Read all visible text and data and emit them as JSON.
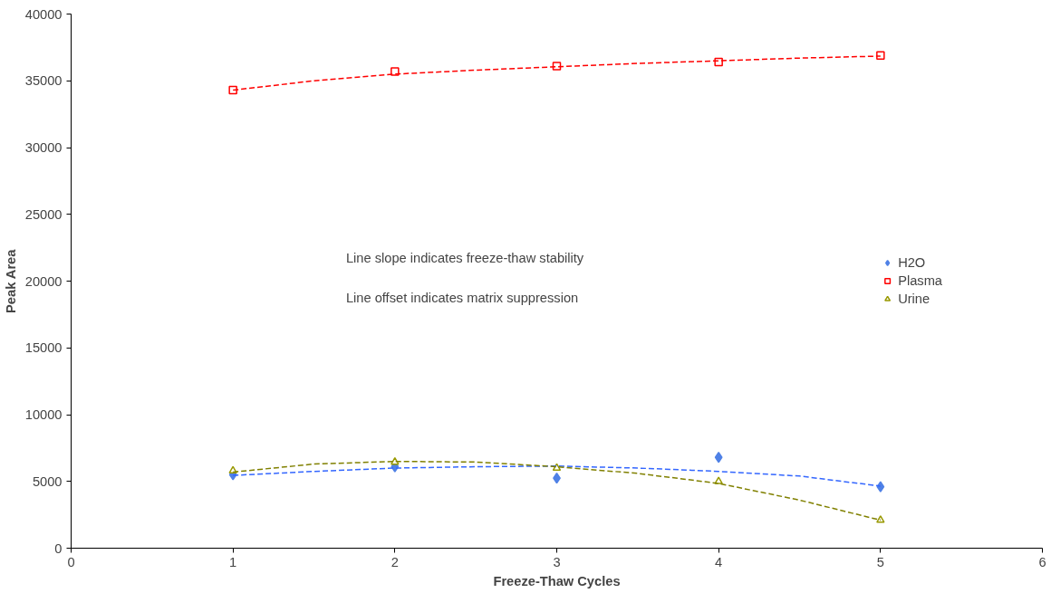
{
  "chart_data": {
    "type": "scatter",
    "xlabel": "Freeze-Thaw Cycles",
    "ylabel": "Peak Area",
    "annotations": [
      "Line slope indicates freeze-thaw stability",
      "Line offset indicates matrix suppression"
    ],
    "xlim": [
      0,
      6
    ],
    "xticks": [
      0,
      1,
      2,
      3,
      4,
      5,
      6
    ],
    "ylim": [
      0,
      40000
    ],
    "yticks": [
      0,
      5000,
      10000,
      15000,
      20000,
      25000,
      30000,
      35000,
      40000
    ],
    "grid": false,
    "legend": "right",
    "series": [
      {
        "name": "H2O",
        "color": "#4f81e6",
        "marker": "diamond",
        "x": [
          1,
          2,
          3,
          4,
          5
        ],
        "values": [
          5500,
          6100,
          5250,
          6800,
          4600
        ]
      },
      {
        "name": "Plasma",
        "color": "#ff0000",
        "marker": "square",
        "x": [
          1,
          2,
          3,
          4,
          5
        ],
        "values": [
          34300,
          35700,
          36100,
          36400,
          36900
        ]
      },
      {
        "name": "Urine",
        "color": "#999900",
        "marker": "triangle",
        "x": [
          1,
          2,
          3,
          4,
          5
        ],
        "values": [
          5800,
          6450,
          6000,
          5000,
          2100
        ]
      },
      {
        "type": "line",
        "color": "#3366ff",
        "line_style": "dashed",
        "marker": "none",
        "x": [
          1,
          1.5,
          2,
          2.5,
          3,
          3.5,
          4,
          4.5,
          5
        ],
        "values": [
          5450,
          5750,
          6000,
          6100,
          6150,
          6000,
          5750,
          5400,
          4650
        ]
      },
      {
        "type": "line",
        "color": "#ff0000",
        "line_style": "dashed",
        "marker": "none",
        "x": [
          1,
          1.5,
          2,
          2.5,
          3,
          3.5,
          4,
          4.5,
          5
        ],
        "values": [
          34300,
          35000,
          35500,
          35800,
          36050,
          36300,
          36500,
          36700,
          36850
        ]
      },
      {
        "type": "line",
        "color": "#808000",
        "line_style": "dashed",
        "marker": "none",
        "x": [
          1,
          1.5,
          2,
          2.5,
          3,
          3.5,
          4,
          4.5,
          5
        ],
        "values": [
          5700,
          6300,
          6500,
          6450,
          6100,
          5600,
          4850,
          3600,
          2100
        ]
      }
    ]
  }
}
